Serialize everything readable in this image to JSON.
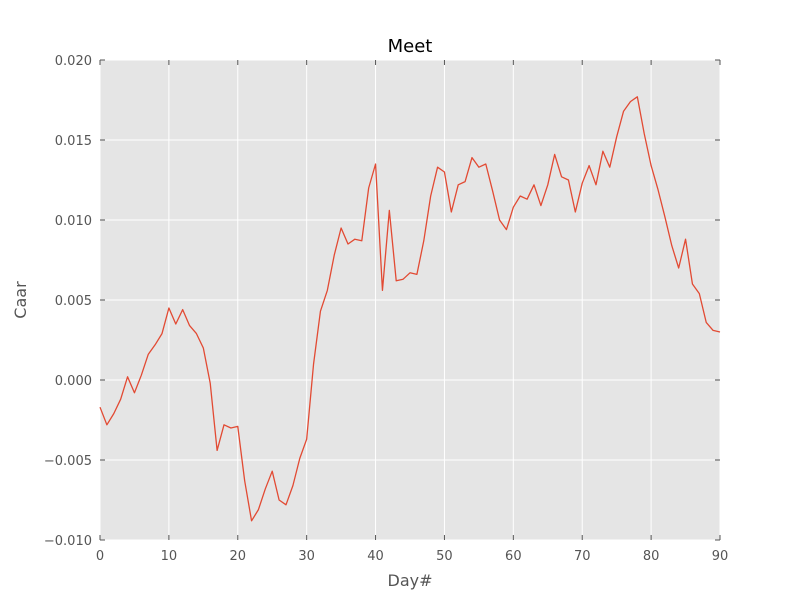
{
  "chart_data": {
    "type": "line",
    "title": "Meet",
    "xlabel": "Day#",
    "ylabel": "Caar",
    "xlim": [
      0,
      90
    ],
    "ylim": [
      -0.01,
      0.02
    ],
    "x_ticks": [
      0,
      10,
      20,
      30,
      40,
      50,
      60,
      70,
      80,
      90
    ],
    "x_tick_labels": [
      "0",
      "10",
      "20",
      "30",
      "40",
      "50",
      "60",
      "70",
      "80",
      "90"
    ],
    "y_ticks": [
      -0.01,
      -0.005,
      0.0,
      0.005,
      0.01,
      0.015,
      0.02
    ],
    "y_tick_labels": [
      "−0.010",
      "−0.005",
      "0.000",
      "0.005",
      "0.010",
      "0.015",
      "0.020"
    ],
    "grid": true,
    "legend": "none",
    "series": [
      {
        "color": "#e24a33",
        "x": [
          0,
          1,
          2,
          3,
          4,
          5,
          6,
          7,
          8,
          9,
          10,
          11,
          12,
          13,
          14,
          15,
          16,
          17,
          18,
          19,
          20,
          21,
          22,
          23,
          24,
          25,
          26,
          27,
          28,
          29,
          30,
          31,
          32,
          33,
          34,
          35,
          36,
          37,
          38,
          39,
          40,
          41,
          42,
          43,
          44,
          45,
          46,
          47,
          48,
          49,
          50,
          51,
          52,
          53,
          54,
          55,
          56,
          57,
          58,
          59,
          60,
          61,
          62,
          63,
          64,
          65,
          66,
          67,
          68,
          69,
          70,
          71,
          72,
          73,
          74,
          75,
          76,
          77,
          78,
          79,
          80,
          81,
          82,
          83,
          84,
          85,
          86,
          87,
          88,
          89,
          90
        ],
        "values": [
          -0.0017,
          -0.0028,
          -0.0021,
          -0.0012,
          0.0002,
          -0.0008,
          0.0003,
          0.0016,
          0.0022,
          0.0029,
          0.0045,
          0.0035,
          0.0044,
          0.0034,
          0.0029,
          0.002,
          -0.0002,
          -0.0044,
          -0.0028,
          -0.003,
          -0.0029,
          -0.0063,
          -0.0088,
          -0.0081,
          -0.0068,
          -0.0057,
          -0.0075,
          -0.0078,
          -0.0066,
          -0.0049,
          -0.0037,
          0.001,
          0.0043,
          0.0056,
          0.0078,
          0.0095,
          0.0085,
          0.0088,
          0.0087,
          0.012,
          0.0135,
          0.0056,
          0.0106,
          0.0062,
          0.0063,
          0.0067,
          0.0066,
          0.0087,
          0.0115,
          0.0133,
          0.013,
          0.0105,
          0.0122,
          0.0124,
          0.0139,
          0.0133,
          0.0135,
          0.0118,
          0.01,
          0.0094,
          0.0108,
          0.0115,
          0.0113,
          0.0122,
          0.0109,
          0.0122,
          0.0141,
          0.0127,
          0.0125,
          0.0105,
          0.0123,
          0.0134,
          0.0122,
          0.0143,
          0.0133,
          0.0152,
          0.0168,
          0.0174,
          0.0177,
          0.0154,
          0.0134,
          0.0119,
          0.0102,
          0.0084,
          0.007,
          0.0088,
          0.006,
          0.0054,
          0.0036,
          0.0031,
          0.003
        ]
      }
    ],
    "colors": {
      "plot_background": "#e5e5e5",
      "grid": "#ffffff",
      "line": "#e24a33",
      "tick_text": "#555555",
      "title_text": "#000000"
    }
  }
}
